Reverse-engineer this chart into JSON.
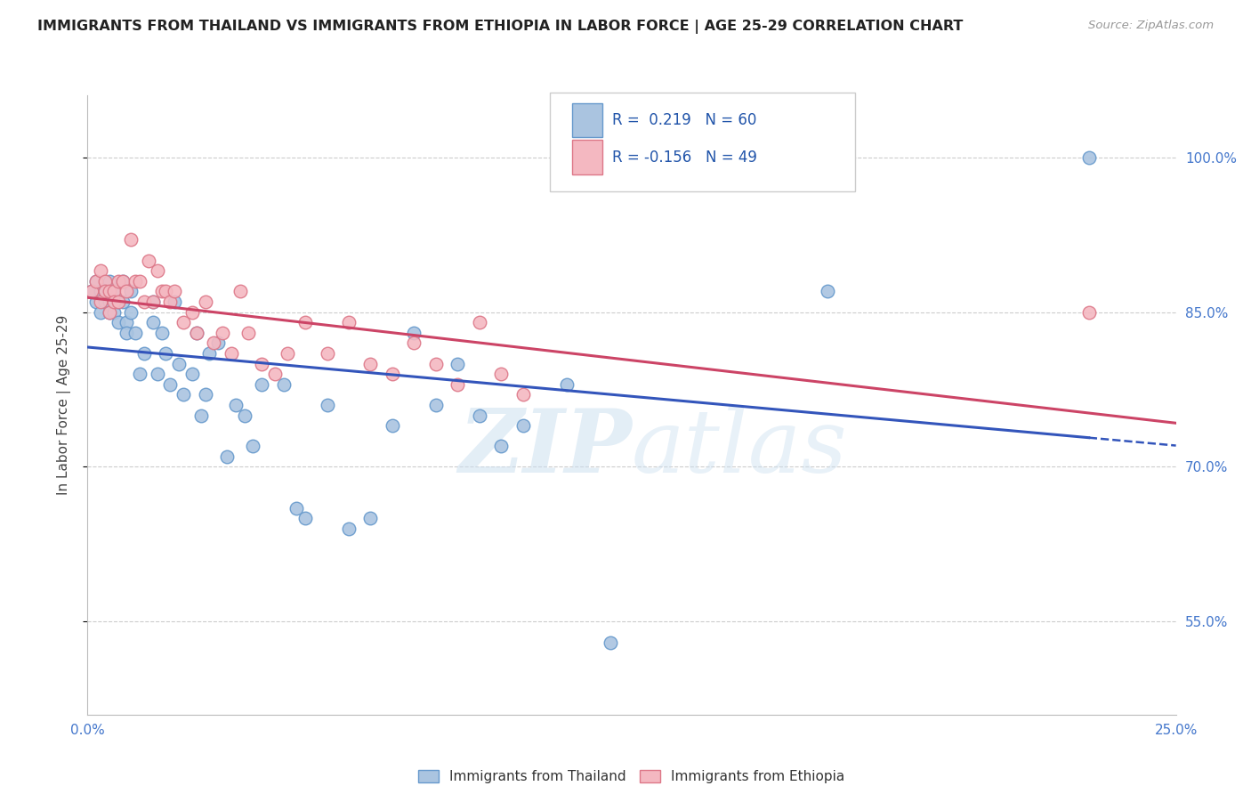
{
  "title": "IMMIGRANTS FROM THAILAND VS IMMIGRANTS FROM ETHIOPIA IN LABOR FORCE | AGE 25-29 CORRELATION CHART",
  "source": "Source: ZipAtlas.com",
  "ylabel": "In Labor Force | Age 25-29",
  "ytick_labels": [
    "100.0%",
    "85.0%",
    "70.0%",
    "55.0%"
  ],
  "ytick_values": [
    1.0,
    0.85,
    0.7,
    0.55
  ],
  "xlim": [
    0.0,
    0.25
  ],
  "ylim": [
    0.46,
    1.06
  ],
  "background_color": "#ffffff",
  "grid_color": "#cccccc",
  "thailand_color": "#aac4e0",
  "ethiopia_color": "#f4b8c1",
  "thailand_edge": "#6699cc",
  "ethiopia_edge": "#dd7788",
  "trend_blue": "#3355bb",
  "trend_pink": "#cc4466",
  "R_thailand": 0.219,
  "N_thailand": 60,
  "R_ethiopia": -0.156,
  "N_ethiopia": 49,
  "legend_label_1": "Immigrants from Thailand",
  "legend_label_2": "Immigrants from Ethiopia",
  "watermark_zip": "ZIP",
  "watermark_atlas": "atlas",
  "thailand_x": [
    0.001,
    0.002,
    0.002,
    0.003,
    0.003,
    0.004,
    0.004,
    0.005,
    0.005,
    0.005,
    0.006,
    0.006,
    0.007,
    0.007,
    0.008,
    0.008,
    0.009,
    0.009,
    0.01,
    0.01,
    0.011,
    0.012,
    0.013,
    0.015,
    0.015,
    0.016,
    0.017,
    0.018,
    0.019,
    0.02,
    0.021,
    0.022,
    0.024,
    0.025,
    0.026,
    0.027,
    0.028,
    0.03,
    0.032,
    0.034,
    0.036,
    0.038,
    0.04,
    0.045,
    0.048,
    0.05,
    0.055,
    0.06,
    0.065,
    0.07,
    0.075,
    0.08,
    0.085,
    0.09,
    0.095,
    0.1,
    0.11,
    0.12,
    0.17,
    0.23
  ],
  "thailand_y": [
    0.87,
    0.88,
    0.86,
    0.87,
    0.85,
    0.87,
    0.86,
    0.88,
    0.86,
    0.85,
    0.87,
    0.85,
    0.86,
    0.84,
    0.88,
    0.86,
    0.84,
    0.83,
    0.87,
    0.85,
    0.83,
    0.79,
    0.81,
    0.86,
    0.84,
    0.79,
    0.83,
    0.81,
    0.78,
    0.86,
    0.8,
    0.77,
    0.79,
    0.83,
    0.75,
    0.77,
    0.81,
    0.82,
    0.71,
    0.76,
    0.75,
    0.72,
    0.78,
    0.78,
    0.66,
    0.65,
    0.76,
    0.64,
    0.65,
    0.74,
    0.83,
    0.76,
    0.8,
    0.75,
    0.72,
    0.74,
    0.78,
    0.53,
    0.87,
    1.0
  ],
  "ethiopia_x": [
    0.001,
    0.002,
    0.003,
    0.003,
    0.004,
    0.004,
    0.005,
    0.005,
    0.006,
    0.006,
    0.007,
    0.007,
    0.008,
    0.009,
    0.01,
    0.011,
    0.012,
    0.013,
    0.014,
    0.015,
    0.016,
    0.017,
    0.018,
    0.019,
    0.02,
    0.022,
    0.024,
    0.025,
    0.027,
    0.029,
    0.031,
    0.033,
    0.035,
    0.037,
    0.04,
    0.043,
    0.046,
    0.05,
    0.055,
    0.06,
    0.065,
    0.07,
    0.075,
    0.08,
    0.085,
    0.09,
    0.095,
    0.1,
    0.23
  ],
  "ethiopia_y": [
    0.87,
    0.88,
    0.89,
    0.86,
    0.88,
    0.87,
    0.87,
    0.85,
    0.87,
    0.86,
    0.88,
    0.86,
    0.88,
    0.87,
    0.92,
    0.88,
    0.88,
    0.86,
    0.9,
    0.86,
    0.89,
    0.87,
    0.87,
    0.86,
    0.87,
    0.84,
    0.85,
    0.83,
    0.86,
    0.82,
    0.83,
    0.81,
    0.87,
    0.83,
    0.8,
    0.79,
    0.81,
    0.84,
    0.81,
    0.84,
    0.8,
    0.79,
    0.82,
    0.8,
    0.78,
    0.84,
    0.79,
    0.77,
    0.85
  ]
}
